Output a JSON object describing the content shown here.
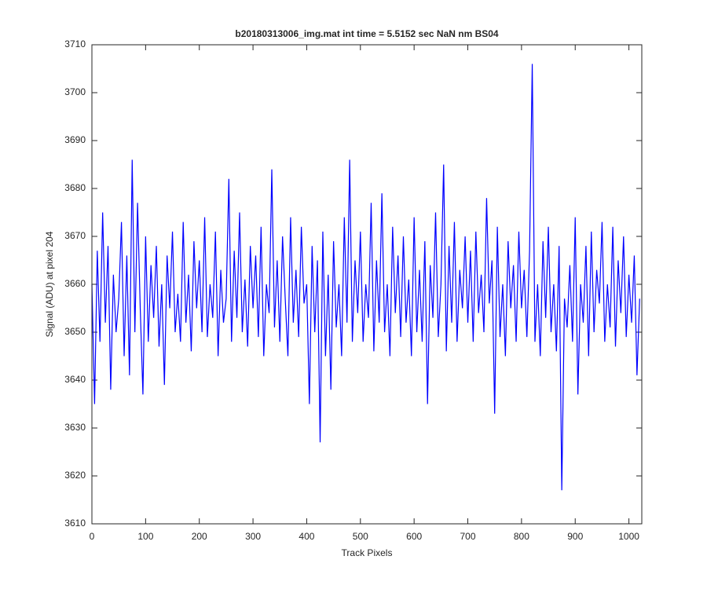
{
  "chart_data": {
    "type": "line",
    "title": "b20180313006_img.mat int time = 5.5152 sec  NaN nm BS04",
    "xlabel": "Track Pixels",
    "ylabel": "Signal (ADU) at pixel 204",
    "color": "#0000ff",
    "xlim": [
      0,
      1024
    ],
    "ylim": [
      3610,
      3710
    ],
    "xticks": [
      0,
      100,
      200,
      300,
      400,
      500,
      600,
      700,
      800,
      900,
      1000
    ],
    "yticks": [
      3610,
      3620,
      3630,
      3640,
      3650,
      3660,
      3670,
      3680,
      3690,
      3700,
      3710
    ],
    "x": [
      0,
      5,
      10,
      15,
      20,
      25,
      30,
      35,
      40,
      45,
      50,
      55,
      60,
      65,
      70,
      75,
      80,
      85,
      90,
      95,
      100,
      105,
      110,
      115,
      120,
      125,
      130,
      135,
      140,
      145,
      150,
      155,
      160,
      165,
      170,
      175,
      180,
      185,
      190,
      195,
      200,
      205,
      210,
      215,
      220,
      225,
      230,
      235,
      240,
      245,
      250,
      255,
      260,
      265,
      270,
      275,
      280,
      285,
      290,
      295,
      300,
      305,
      310,
      315,
      320,
      325,
      330,
      335,
      340,
      345,
      350,
      355,
      360,
      365,
      370,
      375,
      380,
      385,
      390,
      395,
      400,
      405,
      410,
      415,
      420,
      425,
      430,
      435,
      440,
      445,
      450,
      455,
      460,
      465,
      470,
      475,
      480,
      485,
      490,
      495,
      500,
      505,
      510,
      515,
      520,
      525,
      530,
      535,
      540,
      545,
      550,
      555,
      560,
      565,
      570,
      575,
      580,
      585,
      590,
      595,
      600,
      605,
      610,
      615,
      620,
      625,
      630,
      635,
      640,
      645,
      650,
      655,
      660,
      665,
      670,
      675,
      680,
      685,
      690,
      695,
      700,
      705,
      710,
      715,
      720,
      725,
      730,
      735,
      740,
      745,
      750,
      755,
      760,
      765,
      770,
      775,
      780,
      785,
      790,
      795,
      800,
      805,
      810,
      815,
      820,
      825,
      830,
      835,
      840,
      845,
      850,
      855,
      860,
      865,
      870,
      875,
      880,
      885,
      890,
      895,
      900,
      905,
      910,
      915,
      920,
      925,
      930,
      935,
      940,
      945,
      950,
      955,
      960,
      965,
      970,
      975,
      980,
      985,
      990,
      995,
      1000,
      1005,
      1010,
      1015,
      1020
    ],
    "values": [
      3660,
      3635,
      3667,
      3648,
      3675,
      3652,
      3668,
      3638,
      3662,
      3650,
      3657,
      3673,
      3645,
      3666,
      3641,
      3686,
      3650,
      3677,
      3655,
      3637,
      3670,
      3648,
      3664,
      3653,
      3668,
      3647,
      3660,
      3639,
      3666,
      3655,
      3671,
      3650,
      3658,
      3648,
      3673,
      3652,
      3662,
      3646,
      3669,
      3655,
      3665,
      3650,
      3674,
      3649,
      3660,
      3653,
      3671,
      3645,
      3663,
      3652,
      3657,
      3682,
      3648,
      3667,
      3653,
      3675,
      3650,
      3661,
      3647,
      3668,
      3655,
      3666,
      3649,
      3672,
      3645,
      3660,
      3654,
      3684,
      3651,
      3665,
      3648,
      3670,
      3657,
      3645,
      3674,
      3652,
      3663,
      3649,
      3672,
      3656,
      3660,
      3635,
      3668,
      3650,
      3665,
      3627,
      3671,
      3645,
      3662,
      3638,
      3669,
      3651,
      3660,
      3645,
      3674,
      3652,
      3686,
      3648,
      3665,
      3654,
      3671,
      3648,
      3660,
      3653,
      3677,
      3646,
      3665,
      3652,
      3679,
      3650,
      3660,
      3645,
      3672,
      3654,
      3666,
      3649,
      3670,
      3652,
      3661,
      3645,
      3674,
      3650,
      3663,
      3648,
      3669,
      3635,
      3664,
      3653,
      3675,
      3649,
      3660,
      3685,
      3646,
      3668,
      3652,
      3673,
      3648,
      3663,
      3655,
      3670,
      3652,
      3667,
      3648,
      3671,
      3654,
      3662,
      3650,
      3678,
      3656,
      3665,
      3633,
      3672,
      3649,
      3660,
      3645,
      3669,
      3655,
      3664,
      3648,
      3671,
      3655,
      3663,
      3649,
      3667,
      3706,
      3648,
      3660,
      3645,
      3669,
      3653,
      3672,
      3650,
      3660,
      3646,
      3668,
      3617,
      3657,
      3651,
      3664,
      3648,
      3674,
      3637,
      3660,
      3652,
      3668,
      3645,
      3671,
      3650,
      3663,
      3656,
      3673,
      3648,
      3660,
      3651,
      3672,
      3647,
      3665,
      3654,
      3670,
      3649,
      3662,
      3652,
      3666,
      3641,
      3657
    ]
  }
}
